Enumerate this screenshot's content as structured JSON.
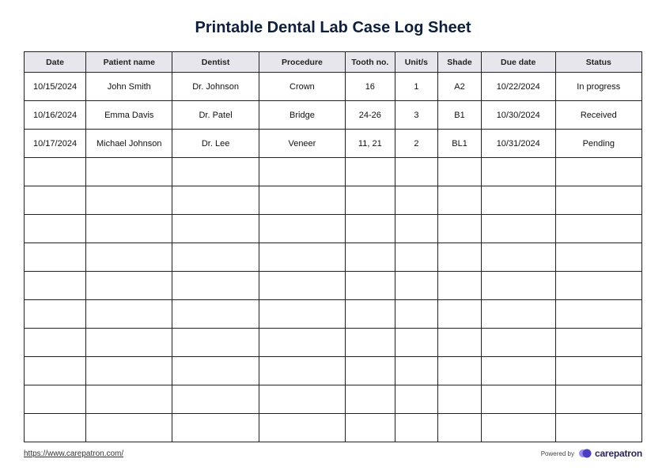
{
  "title": "Printable Dental Lab Case Log Sheet",
  "table": {
    "columns": [
      {
        "label": "Date",
        "width": "10%"
      },
      {
        "label": "Patient name",
        "width": "14%"
      },
      {
        "label": "Dentist",
        "width": "14%"
      },
      {
        "label": "Procedure",
        "width": "14%"
      },
      {
        "label": "Tooth no.",
        "width": "8%"
      },
      {
        "label": "Unit/s",
        "width": "7%"
      },
      {
        "label": "Shade",
        "width": "7%"
      },
      {
        "label": "Due date",
        "width": "12%"
      },
      {
        "label": "Status",
        "width": "14%"
      }
    ],
    "rows": [
      [
        "10/15/2024",
        "John Smith",
        "Dr. Johnson",
        "Crown",
        "16",
        "1",
        "A2",
        "10/22/2024",
        "In progress"
      ],
      [
        "10/16/2024",
        "Emma Davis",
        "Dr. Patel",
        "Bridge",
        "24-26",
        "3",
        "B1",
        "10/30/2024",
        "Received"
      ],
      [
        "10/17/2024",
        "Michael Johnson",
        "Dr. Lee",
        "Veneer",
        "11, 21",
        "2",
        "BL1",
        "10/31/2024",
        "Pending"
      ]
    ],
    "empty_rows": 10,
    "header_bg": "#e7e6ec",
    "border_color": "#222222"
  },
  "footer": {
    "link_text": "https://www.carepatron.com/",
    "powered_by": "Powered by",
    "brand": "carepatron",
    "logo_colors": {
      "left": "#9b8cf0",
      "right": "#4b3fbf"
    }
  }
}
